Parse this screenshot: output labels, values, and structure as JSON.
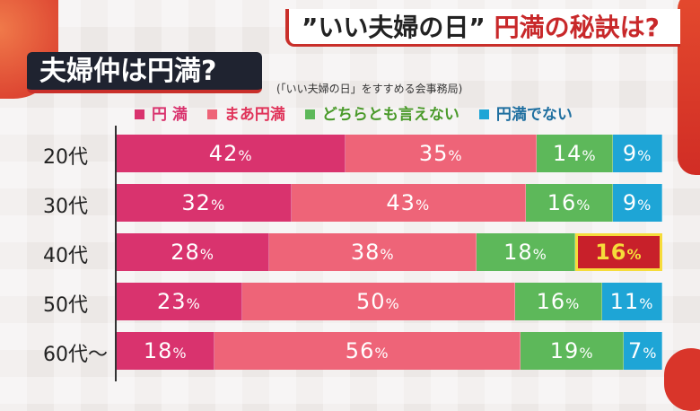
{
  "header": {
    "title_quote": "”いい夫婦の日”",
    "title_red": "円満の秘訣は?",
    "subtitle": "夫婦仲は円満?",
    "source": "(「いい夫婦の日」をすすめる会事務局)"
  },
  "chart_data": {
    "type": "bar",
    "orientation": "horizontal-stacked-100",
    "title": "夫婦仲は円満?",
    "categories": [
      "20代",
      "30代",
      "40代",
      "50代",
      "60代〜"
    ],
    "series": [
      {
        "name": "円 満",
        "color": "#d9336e",
        "values": [
          42,
          32,
          28,
          23,
          18
        ]
      },
      {
        "name": "まあ円満",
        "color": "#ee6478",
        "values": [
          35,
          43,
          38,
          50,
          56
        ]
      },
      {
        "name": "どちらとも言えない",
        "color": "#5db85a",
        "values": [
          14,
          16,
          18,
          16,
          19
        ]
      },
      {
        "name": "円満でない",
        "color": "#1ea5d6",
        "values": [
          9,
          9,
          16,
          11,
          7
        ]
      }
    ],
    "highlight": {
      "category": "40代",
      "series": "円満でない",
      "color": "#c8202a",
      "border": "#f6dc3a"
    },
    "unit": "%",
    "xlim": [
      0,
      100
    ]
  }
}
